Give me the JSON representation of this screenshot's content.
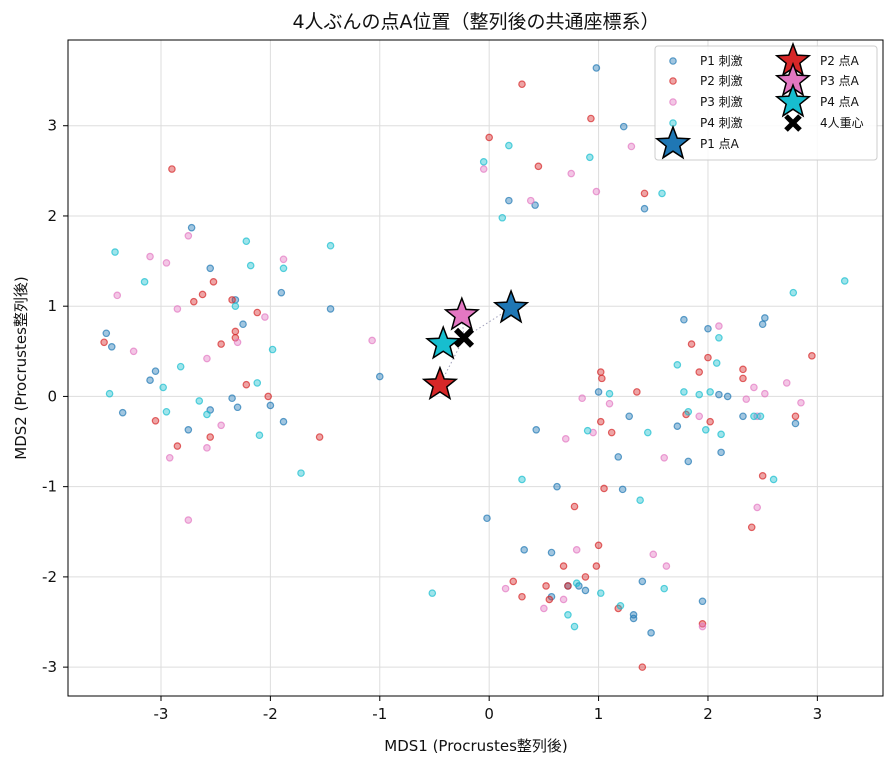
{
  "chart_data": {
    "type": "scatter",
    "title": "4人ぶんの点A位置（整列後の共通座標系）",
    "xlabel": "MDS1 (Procrustes整列後)",
    "ylabel": "MDS2 (Procrustes整列後)",
    "xlim": [
      -3.85,
      3.6
    ],
    "ylim": [
      -3.32,
      3.95
    ],
    "xticks": [
      -3,
      -2,
      -1,
      0,
      1,
      2,
      3
    ],
    "yticks": [
      -3,
      -2,
      -1,
      0,
      1,
      2,
      3
    ],
    "xtick_labels": [
      "-3",
      "-2",
      "-1",
      "0",
      "1",
      "2",
      "3"
    ],
    "ytick_labels": [
      "-3",
      "-2",
      "-1",
      "0",
      "1",
      "2",
      "3"
    ],
    "grid": true,
    "legend_position": "top-right",
    "stimulus_series": [
      {
        "name": "P1 刺激",
        "color": "#1f77b4",
        "points": [
          [
            -3.5,
            0.7
          ],
          [
            -3.45,
            0.55
          ],
          [
            -3.35,
            -0.18
          ],
          [
            -3.05,
            0.28
          ],
          [
            -3.1,
            0.18
          ],
          [
            -2.75,
            -0.37
          ],
          [
            -2.72,
            1.87
          ],
          [
            -2.55,
            1.42
          ],
          [
            -2.55,
            -0.15
          ],
          [
            -2.32,
            1.07
          ],
          [
            -2.35,
            -0.02
          ],
          [
            -2.3,
            -0.12
          ],
          [
            -2.25,
            0.8
          ],
          [
            -2.0,
            -0.1
          ],
          [
            -1.9,
            1.15
          ],
          [
            -1.88,
            -0.28
          ],
          [
            -1.45,
            0.97
          ],
          [
            -1.0,
            0.22
          ],
          [
            -0.02,
            -1.35
          ],
          [
            0.18,
            2.17
          ],
          [
            0.32,
            -1.7
          ],
          [
            0.42,
            2.12
          ],
          [
            0.43,
            -0.37
          ],
          [
            0.62,
            -1.0
          ],
          [
            0.57,
            -2.22
          ],
          [
            0.57,
            -1.73
          ],
          [
            0.72,
            -2.1
          ],
          [
            0.82,
            -2.1
          ],
          [
            0.88,
            -2.15
          ],
          [
            0.98,
            3.64
          ],
          [
            1.0,
            0.05
          ],
          [
            1.18,
            -0.67
          ],
          [
            1.23,
            2.99
          ],
          [
            1.22,
            -1.03
          ],
          [
            1.28,
            -0.22
          ],
          [
            1.32,
            -2.42
          ],
          [
            1.32,
            -2.46
          ],
          [
            1.42,
            2.08
          ],
          [
            1.4,
            -2.05
          ],
          [
            1.48,
            -2.62
          ],
          [
            1.72,
            -0.33
          ],
          [
            1.78,
            0.85
          ],
          [
            1.82,
            -0.72
          ],
          [
            1.95,
            -2.27
          ],
          [
            2.0,
            0.75
          ],
          [
            2.1,
            0.02
          ],
          [
            2.12,
            -0.62
          ],
          [
            2.18,
            0.0
          ],
          [
            2.32,
            -0.22
          ],
          [
            2.5,
            0.8
          ],
          [
            2.52,
            0.87
          ],
          [
            2.8,
            -0.3
          ]
        ]
      },
      {
        "name": "P2 刺激",
        "color": "#d62728",
        "points": [
          [
            -3.52,
            0.6
          ],
          [
            -3.05,
            -0.27
          ],
          [
            -2.9,
            2.52
          ],
          [
            -2.85,
            -0.55
          ],
          [
            -2.7,
            1.05
          ],
          [
            -2.62,
            1.13
          ],
          [
            -2.55,
            -0.45
          ],
          [
            -2.52,
            1.27
          ],
          [
            -2.45,
            0.58
          ],
          [
            -2.35,
            1.07
          ],
          [
            -2.32,
            0.72
          ],
          [
            -2.32,
            0.65
          ],
          [
            -2.22,
            0.13
          ],
          [
            -2.12,
            0.93
          ],
          [
            -2.02,
            0.0
          ],
          [
            -1.55,
            -0.45
          ],
          [
            0.0,
            2.87
          ],
          [
            0.22,
            -2.05
          ],
          [
            0.3,
            3.46
          ],
          [
            0.3,
            -2.22
          ],
          [
            0.45,
            2.55
          ],
          [
            0.52,
            -2.1
          ],
          [
            0.55,
            -2.25
          ],
          [
            0.68,
            -1.88
          ],
          [
            0.72,
            -2.1
          ],
          [
            0.78,
            -1.22
          ],
          [
            0.88,
            -2.0
          ],
          [
            0.93,
            3.08
          ],
          [
            0.98,
            -1.88
          ],
          [
            1.0,
            -1.65
          ],
          [
            1.02,
            -0.28
          ],
          [
            1.02,
            0.27
          ],
          [
            1.03,
            0.2
          ],
          [
            1.05,
            -1.02
          ],
          [
            1.12,
            -0.4
          ],
          [
            1.18,
            -2.35
          ],
          [
            1.35,
            0.05
          ],
          [
            1.42,
            2.25
          ],
          [
            1.4,
            -3.0
          ],
          [
            1.8,
            -0.2
          ],
          [
            1.85,
            0.58
          ],
          [
            1.92,
            0.27
          ],
          [
            1.95,
            -2.52
          ],
          [
            2.0,
            0.43
          ],
          [
            2.02,
            -0.28
          ],
          [
            2.32,
            0.3
          ],
          [
            2.32,
            0.2
          ],
          [
            2.4,
            -1.45
          ],
          [
            2.5,
            -0.88
          ],
          [
            2.8,
            -0.22
          ],
          [
            2.95,
            0.45
          ]
        ]
      },
      {
        "name": "P3 刺激",
        "color": "#e377c2",
        "points": [
          [
            -3.4,
            1.12
          ],
          [
            -3.25,
            0.5
          ],
          [
            -3.1,
            1.55
          ],
          [
            -2.95,
            1.48
          ],
          [
            -2.92,
            -0.68
          ],
          [
            -2.85,
            0.97
          ],
          [
            -2.75,
            -1.37
          ],
          [
            -2.75,
            1.78
          ],
          [
            -2.58,
            0.42
          ],
          [
            -2.58,
            -0.57
          ],
          [
            -2.45,
            -0.32
          ],
          [
            -2.3,
            0.6
          ],
          [
            -2.05,
            0.88
          ],
          [
            -1.88,
            1.52
          ],
          [
            -1.07,
            0.62
          ],
          [
            -0.05,
            2.52
          ],
          [
            0.15,
            -2.13
          ],
          [
            0.38,
            2.17
          ],
          [
            0.5,
            -2.35
          ],
          [
            0.68,
            -2.25
          ],
          [
            0.7,
            -0.47
          ],
          [
            0.75,
            2.47
          ],
          [
            0.8,
            -1.7
          ],
          [
            0.85,
            -0.02
          ],
          [
            0.95,
            -0.4
          ],
          [
            0.98,
            2.27
          ],
          [
            1.1,
            -0.08
          ],
          [
            1.3,
            2.77
          ],
          [
            1.5,
            -1.75
          ],
          [
            1.6,
            -0.68
          ],
          [
            1.62,
            -1.88
          ],
          [
            1.95,
            -2.55
          ],
          [
            1.92,
            -0.22
          ],
          [
            2.1,
            0.78
          ],
          [
            2.35,
            -0.03
          ],
          [
            2.42,
            0.1
          ],
          [
            2.45,
            -0.22
          ],
          [
            2.45,
            -1.23
          ],
          [
            2.52,
            0.03
          ],
          [
            2.72,
            0.15
          ],
          [
            2.85,
            -0.07
          ]
        ]
      },
      {
        "name": "P4 刺激",
        "color": "#17becf",
        "points": [
          [
            -3.42,
            1.6
          ],
          [
            -3.47,
            0.03
          ],
          [
            -3.15,
            1.27
          ],
          [
            -2.98,
            0.1
          ],
          [
            -2.95,
            -0.17
          ],
          [
            -2.82,
            0.33
          ],
          [
            -2.65,
            -0.05
          ],
          [
            -2.58,
            -0.2
          ],
          [
            -2.32,
            1.0
          ],
          [
            -2.22,
            1.72
          ],
          [
            -2.18,
            1.45
          ],
          [
            -2.12,
            0.15
          ],
          [
            -2.1,
            -0.43
          ],
          [
            -1.98,
            0.52
          ],
          [
            -1.88,
            1.42
          ],
          [
            -1.72,
            -0.85
          ],
          [
            -1.45,
            1.67
          ],
          [
            -0.52,
            -2.18
          ],
          [
            -0.05,
            2.6
          ],
          [
            0.12,
            1.98
          ],
          [
            0.18,
            2.78
          ],
          [
            0.3,
            -0.92
          ],
          [
            0.72,
            -2.42
          ],
          [
            0.78,
            -2.55
          ],
          [
            0.8,
            -2.07
          ],
          [
            0.9,
            -0.38
          ],
          [
            0.92,
            2.65
          ],
          [
            1.02,
            -2.18
          ],
          [
            1.1,
            0.03
          ],
          [
            1.2,
            -2.32
          ],
          [
            1.38,
            -1.15
          ],
          [
            1.45,
            -0.4
          ],
          [
            1.58,
            2.25
          ],
          [
            1.6,
            -2.13
          ],
          [
            1.72,
            0.35
          ],
          [
            1.78,
            0.05
          ],
          [
            1.82,
            -0.17
          ],
          [
            1.92,
            0.02
          ],
          [
            1.98,
            -0.37
          ],
          [
            2.02,
            0.05
          ],
          [
            2.08,
            0.37
          ],
          [
            2.1,
            0.65
          ],
          [
            2.12,
            -0.42
          ],
          [
            2.42,
            -0.22
          ],
          [
            2.48,
            -0.22
          ],
          [
            2.6,
            -0.92
          ],
          [
            2.78,
            1.15
          ],
          [
            3.25,
            1.28
          ]
        ]
      }
    ],
    "point_a_series": [
      {
        "name": "P1 点A",
        "color": "#1f77b4",
        "x": 0.2,
        "y": 0.98
      },
      {
        "name": "P2 点A",
        "color": "#d62728",
        "x": -0.45,
        "y": 0.13
      },
      {
        "name": "P3 点A",
        "color": "#e377c2",
        "x": -0.25,
        "y": 0.9
      },
      {
        "name": "P4 点A",
        "color": "#17becf",
        "x": -0.42,
        "y": 0.58
      }
    ],
    "centroid": {
      "name": "4人重心",
      "x": -0.23,
      "y": 0.65
    },
    "legend_order": [
      {
        "name": "P1 刺激",
        "kind": "dot",
        "color": "#1f77b4"
      },
      {
        "name": "P2 刺激",
        "kind": "dot",
        "color": "#d62728"
      },
      {
        "name": "P3 刺激",
        "kind": "dot",
        "color": "#e377c2"
      },
      {
        "name": "P4 刺激",
        "kind": "dot",
        "color": "#17becf"
      },
      {
        "name": "P1 点A",
        "kind": "star",
        "color": "#1f77b4"
      },
      {
        "name": "P2 点A",
        "kind": "star",
        "color": "#d62728"
      },
      {
        "name": "P3 点A",
        "kind": "star",
        "color": "#e377c2"
      },
      {
        "name": "P4 点A",
        "kind": "star",
        "color": "#17becf"
      },
      {
        "name": "4人重心",
        "kind": "x",
        "color": "#000000"
      }
    ]
  }
}
